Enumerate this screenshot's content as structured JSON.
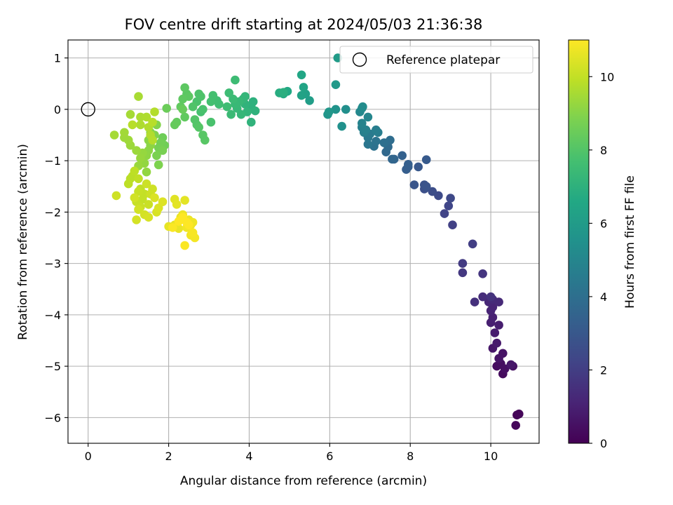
{
  "chart_data": {
    "type": "scatter",
    "title": "FOV centre drift starting at 2024/05/03 21:36:38",
    "xlabel": "Angular distance from reference (arcmin)",
    "ylabel": "Rotation from reference (arcmin)",
    "xlim": [
      -0.5,
      11.2
    ],
    "ylim": [
      -6.5,
      1.35
    ],
    "xticks": [
      0,
      2,
      4,
      6,
      8,
      10
    ],
    "yticks": [
      1,
      0,
      -1,
      -2,
      -3,
      -4,
      -5,
      -6
    ],
    "grid": true,
    "legend": {
      "placement": "top-right",
      "entries": [
        "Reference platepar"
      ]
    },
    "reference_point": {
      "x": 0,
      "y": 0
    },
    "colorbar": {
      "label": "Hours from first FF file",
      "colormap": "viridis",
      "range": [
        0,
        11
      ],
      "ticks": [
        0,
        2,
        4,
        6,
        8,
        10
      ]
    },
    "points": [
      [
        10.65,
        -5.95,
        0.1
      ],
      [
        10.7,
        -5.93,
        0.15
      ],
      [
        10.62,
        -6.15,
        0.2
      ],
      [
        10.3,
        -5.15,
        0.3
      ],
      [
        10.15,
        -5.0,
        0.35
      ],
      [
        10.25,
        -4.95,
        0.4
      ],
      [
        10.35,
        -5.05,
        0.45
      ],
      [
        10.55,
        -5.0,
        0.5
      ],
      [
        10.3,
        -4.75,
        0.55
      ],
      [
        10.2,
        -4.85,
        0.6
      ],
      [
        10.05,
        -4.65,
        0.65
      ],
      [
        10.5,
        -4.97,
        0.7
      ],
      [
        10.15,
        -4.55,
        0.8
      ],
      [
        10.1,
        -4.35,
        0.85
      ],
      [
        10.2,
        -4.2,
        0.9
      ],
      [
        10.0,
        -4.15,
        0.95
      ],
      [
        10.05,
        -4.05,
        1.0
      ],
      [
        10.0,
        -3.92,
        1.1
      ],
      [
        10.05,
        -3.85,
        1.15
      ],
      [
        9.95,
        -3.75,
        1.2
      ],
      [
        10.2,
        -3.75,
        1.3
      ],
      [
        10.05,
        -3.7,
        1.35
      ],
      [
        9.8,
        -3.65,
        1.4
      ],
      [
        9.6,
        -3.75,
        1.5
      ],
      [
        10.0,
        -3.65,
        1.6
      ],
      [
        9.8,
        -3.2,
        1.7
      ],
      [
        9.3,
        -3.18,
        1.8
      ],
      [
        9.3,
        -3.0,
        1.9
      ],
      [
        9.55,
        -2.62,
        2.0
      ],
      [
        9.05,
        -2.25,
        2.1
      ],
      [
        8.85,
        -2.03,
        2.2
      ],
      [
        8.95,
        -1.88,
        2.3
      ],
      [
        9.0,
        -1.73,
        2.4
      ],
      [
        8.7,
        -1.68,
        2.5
      ],
      [
        8.55,
        -1.6,
        2.6
      ],
      [
        8.35,
        -1.55,
        2.7
      ],
      [
        8.35,
        -1.47,
        2.8
      ],
      [
        8.4,
        -1.5,
        2.85
      ],
      [
        8.1,
        -1.47,
        2.9
      ],
      [
        8.2,
        -1.12,
        3.0
      ],
      [
        8.4,
        -0.98,
        3.1
      ],
      [
        7.95,
        -1.12,
        3.2
      ],
      [
        7.9,
        -1.17,
        3.25
      ],
      [
        7.95,
        -1.07,
        3.3
      ],
      [
        7.8,
        -0.9,
        3.4
      ],
      [
        7.6,
        -0.97,
        3.5
      ],
      [
        7.55,
        -0.97,
        3.6
      ],
      [
        7.4,
        -0.83,
        3.7
      ],
      [
        7.45,
        -0.73,
        3.8
      ],
      [
        7.5,
        -0.6,
        3.9
      ],
      [
        7.35,
        -0.65,
        4.0
      ],
      [
        7.1,
        -0.72,
        4.1
      ],
      [
        7.15,
        -0.62,
        4.2
      ],
      [
        6.95,
        -0.68,
        4.3
      ],
      [
        6.95,
        -0.55,
        4.4
      ],
      [
        7.0,
        -0.48,
        4.5
      ],
      [
        7.2,
        -0.45,
        4.6
      ],
      [
        7.15,
        -0.4,
        4.65
      ],
      [
        6.85,
        -0.45,
        4.7
      ],
      [
        6.8,
        -0.35,
        4.75
      ],
      [
        6.9,
        -0.4,
        4.8
      ],
      [
        6.8,
        -0.27,
        4.9
      ],
      [
        6.95,
        -0.15,
        5.0
      ],
      [
        6.75,
        -0.05,
        5.1
      ],
      [
        6.8,
        0.02,
        5.2
      ],
      [
        6.82,
        0.05,
        5.3
      ],
      [
        6.4,
        0.0,
        5.4
      ],
      [
        6.3,
        -0.33,
        5.5
      ],
      [
        6.15,
        0.0,
        5.6
      ],
      [
        5.95,
        -0.1,
        5.7
      ],
      [
        5.98,
        -0.05,
        5.8
      ],
      [
        6.15,
        0.48,
        5.9
      ],
      [
        6.2,
        1.0,
        6.0
      ],
      [
        5.5,
        0.17,
        6.1
      ],
      [
        5.4,
        0.3,
        6.2
      ],
      [
        5.3,
        0.27,
        6.3
      ],
      [
        5.35,
        0.43,
        6.4
      ],
      [
        5.3,
        0.67,
        6.5
      ],
      [
        4.95,
        0.35,
        6.6
      ],
      [
        4.85,
        0.3,
        6.7
      ],
      [
        4.75,
        0.32,
        6.8
      ],
      [
        4.85,
        0.33,
        6.9
      ],
      [
        4.1,
        0.15,
        7.0
      ],
      [
        4.05,
        0.05,
        7.0
      ],
      [
        4.15,
        -0.03,
        7.05
      ],
      [
        4.05,
        -0.25,
        7.1
      ],
      [
        3.9,
        0.1,
        7.1
      ],
      [
        3.95,
        -0.05,
        7.15
      ],
      [
        3.85,
        0.2,
        7.2
      ],
      [
        3.9,
        0.25,
        7.2
      ],
      [
        3.8,
        -0.1,
        7.25
      ],
      [
        3.75,
        0.15,
        7.3
      ],
      [
        3.7,
        0.02,
        7.3
      ],
      [
        3.65,
        0.1,
        7.35
      ],
      [
        3.55,
        -0.1,
        7.4
      ],
      [
        3.6,
        0.2,
        7.45
      ],
      [
        3.65,
        0.57,
        7.5
      ],
      [
        3.5,
        0.32,
        7.5
      ],
      [
        3.45,
        0.05,
        7.55
      ],
      [
        3.25,
        0.1,
        7.6
      ],
      [
        3.2,
        0.17,
        7.6
      ],
      [
        3.1,
        0.27,
        7.7
      ],
      [
        3.05,
        0.15,
        7.7
      ],
      [
        2.8,
        -0.05,
        7.75
      ],
      [
        2.85,
        0.0,
        7.8
      ],
      [
        3.05,
        -0.25,
        7.8
      ],
      [
        2.7,
        0.15,
        7.85
      ],
      [
        2.75,
        0.3,
        7.9
      ],
      [
        2.8,
        0.25,
        7.9
      ],
      [
        2.6,
        0.05,
        7.95
      ],
      [
        2.65,
        -0.2,
        8.0
      ],
      [
        2.7,
        -0.3,
        8.0
      ],
      [
        2.75,
        -0.35,
        8.05
      ],
      [
        2.85,
        -0.5,
        8.1
      ],
      [
        2.9,
        -0.6,
        8.1
      ],
      [
        2.45,
        0.3,
        8.15
      ],
      [
        2.4,
        0.42,
        8.2
      ],
      [
        2.5,
        0.25,
        8.2
      ],
      [
        2.35,
        0.2,
        8.25
      ],
      [
        2.3,
        0.05,
        8.3
      ],
      [
        2.4,
        -0.15,
        8.3
      ],
      [
        2.2,
        -0.25,
        8.35
      ],
      [
        2.15,
        -0.3,
        8.4
      ],
      [
        2.35,
        0.0,
        8.45
      ],
      [
        1.95,
        0.02,
        8.5
      ],
      [
        1.85,
        -0.55,
        8.55
      ],
      [
        1.9,
        -0.7,
        8.6
      ],
      [
        1.8,
        -0.65,
        8.65
      ],
      [
        1.75,
        -0.75,
        8.7
      ],
      [
        1.85,
        -0.8,
        8.75
      ],
      [
        1.7,
        -0.9,
        8.8
      ],
      [
        1.75,
        -1.08,
        8.85
      ],
      [
        1.65,
        -0.5,
        8.9
      ],
      [
        1.7,
        -0.3,
        8.95
      ],
      [
        1.55,
        -0.45,
        9.0
      ],
      [
        1.5,
        -0.6,
        9.05
      ],
      [
        1.55,
        -0.7,
        9.1
      ],
      [
        1.5,
        -0.8,
        9.1
      ],
      [
        1.45,
        -0.9,
        9.15
      ],
      [
        1.4,
        -1.05,
        9.2
      ],
      [
        1.45,
        -1.22,
        9.2
      ],
      [
        1.35,
        -0.85,
        9.25
      ],
      [
        1.3,
        -0.95,
        9.3
      ],
      [
        1.25,
        -1.1,
        9.3
      ],
      [
        1.2,
        -0.8,
        9.35
      ],
      [
        1.05,
        -0.7,
        9.35
      ],
      [
        1.0,
        -0.6,
        9.4
      ],
      [
        0.9,
        -0.55,
        9.4
      ],
      [
        0.9,
        -0.45,
        9.45
      ],
      [
        0.65,
        -0.5,
        9.5
      ],
      [
        1.05,
        -0.1,
        9.5
      ],
      [
        1.25,
        0.25,
        9.55
      ],
      [
        1.3,
        -0.15,
        9.6
      ],
      [
        1.3,
        -0.3,
        9.65
      ],
      [
        1.45,
        -0.15,
        9.65
      ],
      [
        1.5,
        -0.35,
        9.7
      ],
      [
        1.55,
        -0.5,
        9.7
      ],
      [
        1.6,
        -0.6,
        9.75
      ],
      [
        1.65,
        -0.05,
        9.75
      ],
      [
        1.6,
        -0.25,
        9.8
      ],
      [
        1.1,
        -0.3,
        9.8
      ],
      [
        1.1,
        -1.3,
        9.85
      ],
      [
        1.05,
        -1.35,
        9.85
      ],
      [
        1.0,
        -1.45,
        9.9
      ],
      [
        1.15,
        -1.2,
        9.9
      ],
      [
        1.25,
        -1.35,
        9.95
      ],
      [
        1.3,
        -1.55,
        9.95
      ],
      [
        1.4,
        -1.65,
        10.0
      ],
      [
        1.35,
        -1.75,
        10.0
      ],
      [
        1.25,
        -1.6,
        10.05
      ],
      [
        1.2,
        -1.8,
        10.05
      ],
      [
        1.3,
        -1.9,
        10.1
      ],
      [
        1.5,
        -1.85,
        10.1
      ],
      [
        1.45,
        -1.45,
        10.15
      ],
      [
        1.55,
        -1.65,
        10.15
      ],
      [
        1.6,
        -1.55,
        10.2
      ],
      [
        0.7,
        -1.68,
        10.2
      ],
      [
        1.15,
        -1.72,
        10.25
      ],
      [
        1.25,
        -1.95,
        10.25
      ],
      [
        1.2,
        -2.15,
        10.3
      ],
      [
        1.4,
        -2.05,
        10.3
      ],
      [
        1.5,
        -2.1,
        10.35
      ],
      [
        1.7,
        -2.0,
        10.35
      ],
      [
        1.75,
        -1.92,
        10.4
      ],
      [
        1.65,
        -1.72,
        10.4
      ],
      [
        1.85,
        -1.8,
        10.45
      ],
      [
        2.15,
        -1.75,
        10.5
      ],
      [
        2.2,
        -1.85,
        10.55
      ],
      [
        2.4,
        -1.77,
        10.55
      ],
      [
        2.15,
        -2.25,
        10.6
      ],
      [
        2.0,
        -2.28,
        10.6
      ],
      [
        2.25,
        -2.32,
        10.65
      ],
      [
        2.3,
        -2.1,
        10.65
      ],
      [
        2.35,
        -2.05,
        10.7
      ],
      [
        2.5,
        -2.15,
        10.7
      ],
      [
        2.55,
        -2.25,
        10.75
      ],
      [
        2.6,
        -2.2,
        10.75
      ],
      [
        2.45,
        -2.3,
        10.8
      ],
      [
        2.55,
        -2.45,
        10.8
      ],
      [
        2.65,
        -2.5,
        10.85
      ],
      [
        2.6,
        -2.4,
        10.9
      ],
      [
        2.4,
        -2.65,
        10.95
      ],
      [
        2.1,
        -2.3,
        10.95
      ],
      [
        2.25,
        -2.18,
        11.0
      ],
      [
        2.35,
        -2.1,
        11.0
      ],
      [
        2.45,
        -2.2,
        11.0
      ],
      [
        2.5,
        -2.25,
        11.0
      ]
    ]
  }
}
